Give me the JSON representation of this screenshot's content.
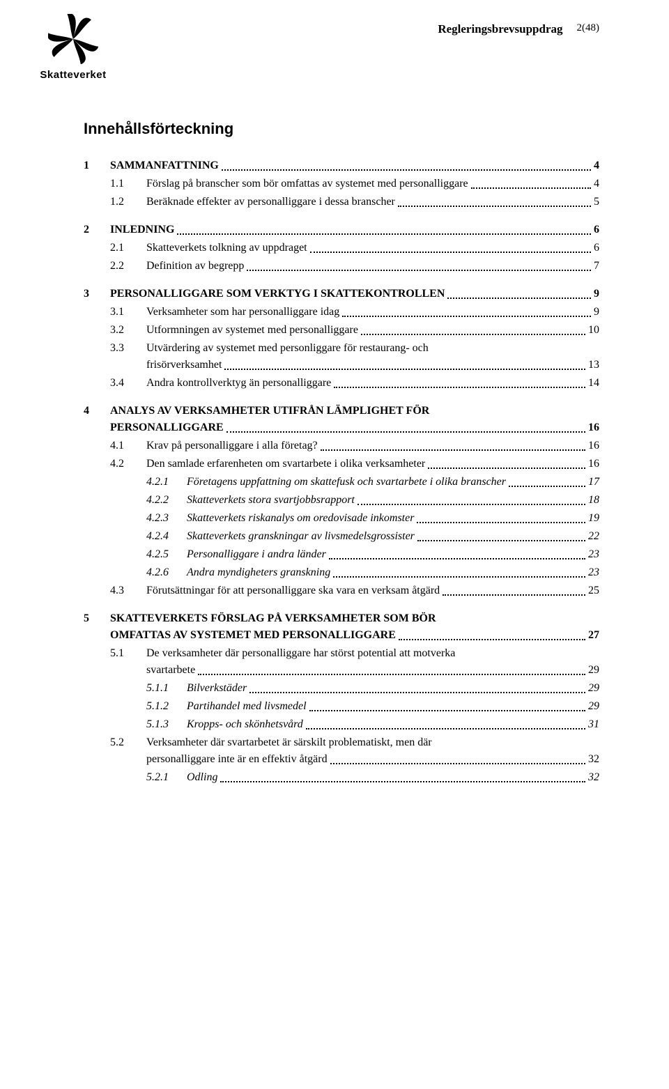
{
  "header": {
    "title": "Regleringsbrevsuppdrag",
    "page": "2(48)"
  },
  "logo": {
    "text": "Skatteverket"
  },
  "doc_title": "Innehållsförteckning",
  "toc": [
    {
      "level": 1,
      "num": "1",
      "txt": "SAMMANFATTNING",
      "pg": "4",
      "gap_before": false
    },
    {
      "level": 2,
      "num": "1.1",
      "txt": "Förslag på branscher som bör omfattas av systemet med personalliggare",
      "pg": "4"
    },
    {
      "level": 2,
      "num": "1.2",
      "txt": "Beräknade effekter av personalliggare i dessa branscher",
      "pg": "5"
    },
    {
      "level": 1,
      "num": "2",
      "txt": "INLEDNING",
      "pg": "6",
      "gap_before": true
    },
    {
      "level": 2,
      "num": "2.1",
      "txt": "Skatteverkets tolkning av uppdraget",
      "pg": "6"
    },
    {
      "level": 2,
      "num": "2.2",
      "txt": "Definition av begrepp",
      "pg": "7"
    },
    {
      "level": 1,
      "num": "3",
      "txt": "PERSONALLIGGARE SOM VERKTYG I SKATTEKONTROLLEN",
      "pg": "9",
      "gap_before": true
    },
    {
      "level": 2,
      "num": "3.1",
      "txt": "Verksamheter som har personalliggare idag",
      "pg": "9"
    },
    {
      "level": 2,
      "num": "3.2",
      "txt": "Utformningen av systemet med personalliggare",
      "pg": "10"
    },
    {
      "level": 2,
      "num": "3.3",
      "txt": "Utvärdering av systemet med personliggare för restaurang- och",
      "txt2": "frisörverksamhet",
      "pg": "13"
    },
    {
      "level": 2,
      "num": "3.4",
      "txt": "Andra kontrollverktyg än personalliggare",
      "pg": "14"
    },
    {
      "level": 1,
      "num": "4",
      "txt": "ANALYS AV VERKSAMHETER UTIFRÅN LÄMPLIGHET FÖR",
      "txt2": "PERSONALLIGGARE",
      "pg": "16",
      "gap_before": true
    },
    {
      "level": 2,
      "num": "4.1",
      "txt": "Krav på personalliggare i alla företag?",
      "pg": "16"
    },
    {
      "level": 2,
      "num": "4.2",
      "txt": "Den samlade erfarenheten om svartarbete i olika verksamheter",
      "pg": "16"
    },
    {
      "level": 3,
      "num": "4.2.1",
      "txt": "Företagens uppfattning om skattefusk och svartarbete i olika branscher",
      "pg": "17"
    },
    {
      "level": 3,
      "num": "4.2.2",
      "txt": "Skatteverkets stora svartjobbsrapport",
      "pg": "18"
    },
    {
      "level": 3,
      "num": "4.2.3",
      "txt": "Skatteverkets riskanalys om oredovisade inkomster",
      "pg": "19"
    },
    {
      "level": 3,
      "num": "4.2.4",
      "txt": "Skatteverkets granskningar av livsmedelsgrossister",
      "pg": "22"
    },
    {
      "level": 3,
      "num": "4.2.5",
      "txt": "Personalliggare i andra länder",
      "pg": "23"
    },
    {
      "level": 3,
      "num": "4.2.6",
      "txt": "Andra myndigheters granskning",
      "pg": "23"
    },
    {
      "level": 2,
      "num": "4.3",
      "txt": "Förutsättningar för att personalliggare ska vara en verksam åtgärd",
      "pg": "25"
    },
    {
      "level": 1,
      "num": "5",
      "txt": "SKATTEVERKETS FÖRSLAG PÅ VERKSAMHETER SOM BÖR",
      "txt2": "OMFATTAS AV SYSTEMET MED PERSONALLIGGARE",
      "pg": "27",
      "gap_before": true
    },
    {
      "level": 2,
      "num": "5.1",
      "txt": "De verksamheter där personalliggare har störst potential att motverka",
      "txt2": "svartarbete",
      "pg": "29"
    },
    {
      "level": 3,
      "num": "5.1.1",
      "txt": "Bilverkstäder",
      "pg": "29"
    },
    {
      "level": 3,
      "num": "5.1.2",
      "txt": "Partihandel med livsmedel",
      "pg": "29"
    },
    {
      "level": 3,
      "num": "5.1.3",
      "txt": "Kropps- och skönhetsvård",
      "pg": "31"
    },
    {
      "level": 2,
      "num": "5.2",
      "txt": "Verksamheter där svartarbetet är särskilt problematiskt, men där",
      "txt2": "personalliggare inte är en effektiv åtgärd",
      "pg": "32"
    },
    {
      "level": 3,
      "num": "5.2.1",
      "txt": "Odling",
      "pg": "32"
    }
  ]
}
